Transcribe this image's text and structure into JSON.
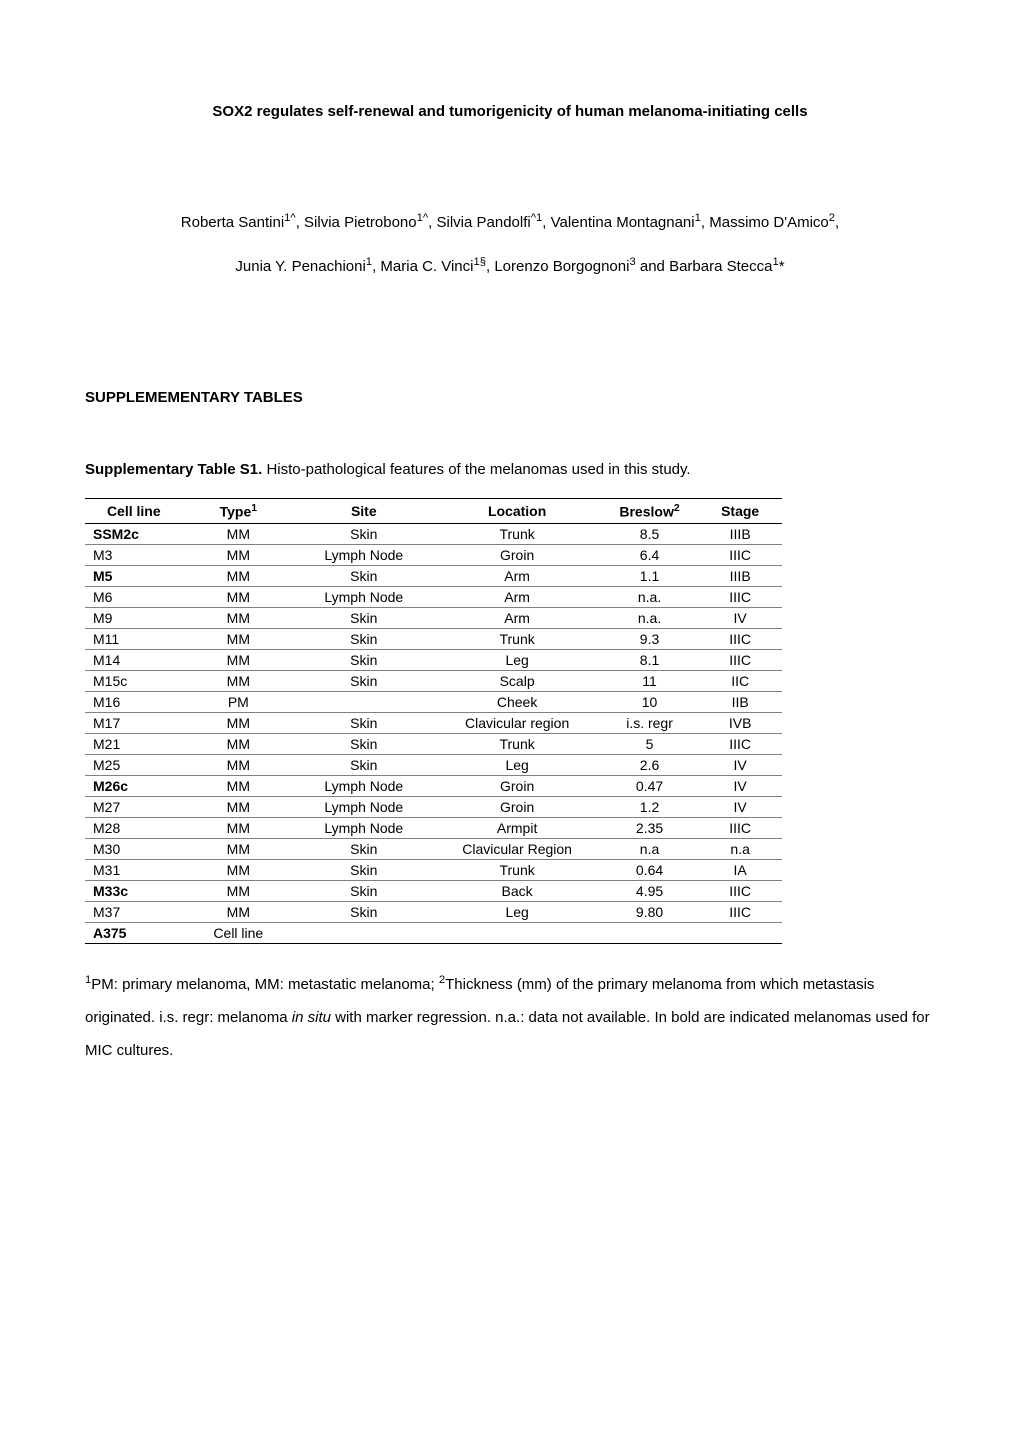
{
  "title": "SOX2 regulates self-renewal and tumorigenicity of human melanoma-initiating cells",
  "authors": {
    "line1_pre": "Roberta Santini",
    "line1_sup1": "1^",
    "line1_a2": ", Silvia Pietrobono",
    "line1_sup2": "1^",
    "line1_a3": ", Silvia Pandolfi",
    "line1_sup3": "^1",
    "line1_a4": ", Valentina Montagnani",
    "line1_sup4": "1",
    "line1_a5": ", Massimo D'Amico",
    "line1_sup5": "2",
    "line1_comma": ",",
    "line2_a1": "Junia Y. Penachioni",
    "line2_sup1": "1",
    "line2_a2": ", Maria C. Vinci",
    "line2_sup2": "1§",
    "line2_a3": ", Lorenzo Borgognoni",
    "line2_sup3": "3",
    "line2_a4": " and Barbara Stecca",
    "line2_sup4": "1",
    "line2_star": "*"
  },
  "section_header": "SUPPLEMEMENTARY TABLES",
  "table_caption_bold": "Supplementary Table S1.",
  "table_caption_rest": " Histo-pathological features of the melanomas used in this study.",
  "table": {
    "headers": {
      "h1": "Cell line",
      "h2_pre": "Type",
      "h2_sup": "1",
      "h3": "Site",
      "h4": "Location",
      "h5_pre": "Breslow",
      "h5_sup": "2",
      "h6": "Stage"
    },
    "rows": [
      {
        "cell_line": "SSM2c",
        "bold": true,
        "type": "MM",
        "site": "Skin",
        "location": "Trunk",
        "breslow": "8.5",
        "stage": "IIIB"
      },
      {
        "cell_line": "M3",
        "bold": false,
        "type": "MM",
        "site": "Lymph Node",
        "location": "Groin",
        "breslow": "6.4",
        "stage": "IIIC"
      },
      {
        "cell_line": "M5",
        "bold": true,
        "type": "MM",
        "site": "Skin",
        "location": "Arm",
        "breslow": "1.1",
        "stage": "IIIB"
      },
      {
        "cell_line": "M6",
        "bold": false,
        "type": "MM",
        "site": "Lymph Node",
        "location": "Arm",
        "breslow": "n.a.",
        "stage": "IIIC"
      },
      {
        "cell_line": "M9",
        "bold": false,
        "type": "MM",
        "site": "Skin",
        "location": "Arm",
        "breslow": "n.a.",
        "stage": "IV"
      },
      {
        "cell_line": "M11",
        "bold": false,
        "type": "MM",
        "site": "Skin",
        "location": "Trunk",
        "breslow": "9.3",
        "stage": "IIIC"
      },
      {
        "cell_line": "M14",
        "bold": false,
        "type": "MM",
        "site": "Skin",
        "location": "Leg",
        "breslow": "8.1",
        "stage": "IIIC"
      },
      {
        "cell_line": "M15c",
        "bold": false,
        "type": "MM",
        "site": "Skin",
        "location": "Scalp",
        "breslow": "11",
        "stage": "IIC"
      },
      {
        "cell_line": "M16",
        "bold": false,
        "type": "PM",
        "site": "",
        "location": "Cheek",
        "breslow": "10",
        "stage": "IIB"
      },
      {
        "cell_line": "M17",
        "bold": false,
        "type": "MM",
        "site": "Skin",
        "location": "Clavicular region",
        "breslow": "i.s. regr",
        "stage": "IVB"
      },
      {
        "cell_line": "M21",
        "bold": false,
        "type": "MM",
        "site": "Skin",
        "location": "Trunk",
        "breslow": "5",
        "stage": "IIIC"
      },
      {
        "cell_line": "M25",
        "bold": false,
        "type": "MM",
        "site": "Skin",
        "location": "Leg",
        "breslow": "2.6",
        "stage": "IV"
      },
      {
        "cell_line": "M26c",
        "bold": true,
        "type": "MM",
        "site": "Lymph Node",
        "location": "Groin",
        "breslow": "0.47",
        "stage": "IV"
      },
      {
        "cell_line": "M27",
        "bold": false,
        "type": "MM",
        "site": "Lymph Node",
        "location": "Groin",
        "breslow": "1.2",
        "stage": "IV"
      },
      {
        "cell_line": "M28",
        "bold": false,
        "type": "MM",
        "site": "Lymph Node",
        "location": "Armpit",
        "breslow": "2.35",
        "stage": "IIIC"
      },
      {
        "cell_line": "M30",
        "bold": false,
        "type": "MM",
        "site": "Skin",
        "location": "Clavicular Region",
        "breslow": "n.a",
        "stage": "n.a"
      },
      {
        "cell_line": "M31",
        "bold": false,
        "type": "MM",
        "site": "Skin",
        "location": "Trunk",
        "breslow": "0.64",
        "stage": "IA"
      },
      {
        "cell_line": "M33c",
        "bold": true,
        "type": "MM",
        "site": "Skin",
        "location": "Back",
        "breslow": "4.95",
        "stage": "IIIC"
      },
      {
        "cell_line": "M37",
        "bold": false,
        "type": "MM",
        "site": "Skin",
        "location": "Leg",
        "breslow": "9.80",
        "stage": "IIIC"
      },
      {
        "cell_line": "A375",
        "bold": true,
        "type": "Cell line",
        "site": "",
        "location": "",
        "breslow": "",
        "stage": ""
      }
    ]
  },
  "footnote": {
    "sup1": "1",
    "f1": "PM: primary melanoma, MM: metastatic melanoma; ",
    "sup2": "2",
    "f2": "Thickness (mm) of the primary melanoma from which metastasis originated. i.s. regr: melanoma ",
    "italic": "in situ",
    "f3": " with marker regression. n.a.: data not available. In bold are indicated melanomas used for MIC cultures."
  }
}
